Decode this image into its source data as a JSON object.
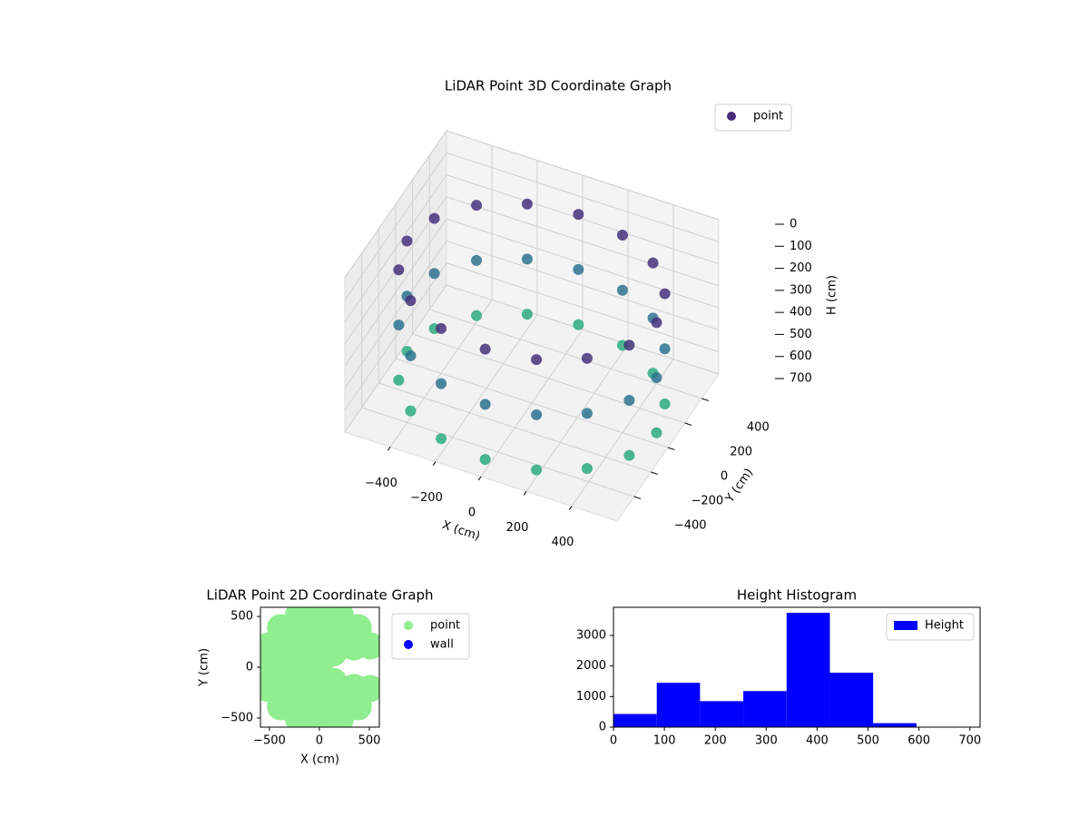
{
  "chart_data": [
    {
      "type": "scatter3d",
      "title": "LiDAR Point 3D Coordinate Graph",
      "xlabel": "X (cm)",
      "ylabel": "Y (cm)",
      "zlabel": "H (cm)",
      "xlim": [
        -600,
        600
      ],
      "ylim": [
        -600,
        600
      ],
      "zlim": [
        0,
        700
      ],
      "z_inverted": true,
      "xticks": [
        {
          "value": -400,
          "label": "−400"
        },
        {
          "value": -200,
          "label": "−200"
        },
        0,
        200,
        400
      ],
      "yticks": [
        {
          "value": -400,
          "label": "−400"
        },
        {
          "value": -200,
          "label": "−200"
        },
        0,
        200,
        400
      ],
      "zticks": [
        0,
        100,
        200,
        300,
        400,
        500,
        600,
        700
      ],
      "colormap": "viridis",
      "legend": "upper right",
      "series": [
        {
          "name": "point",
          "color": "#472d7b",
          "x": [
            550,
            508,
            389,
            210,
            0,
            -210,
            -389,
            -508,
            -550,
            -508,
            -389,
            -210,
            0,
            210,
            389,
            508,
            550,
            508,
            389,
            210,
            0,
            -210,
            -389,
            -508,
            -550,
            -508,
            -389,
            -210,
            0,
            210,
            389,
            508,
            550,
            508,
            389,
            210,
            0,
            -210,
            -389,
            -508,
            -550,
            -508,
            -389,
            -210,
            0,
            210,
            389,
            508
          ],
          "y": [
            0,
            210,
            389,
            508,
            550,
            508,
            389,
            210,
            0,
            -210,
            -389,
            -508,
            -550,
            -508,
            -389,
            -210,
            0,
            210,
            389,
            508,
            550,
            508,
            389,
            210,
            0,
            -210,
            -389,
            -508,
            -550,
            -508,
            -389,
            -210,
            0,
            210,
            389,
            508,
            550,
            508,
            389,
            210,
            0,
            -210,
            -389,
            -508,
            -550,
            -508,
            -389,
            -210
          ],
          "z": [
            150,
            150,
            150,
            150,
            150,
            150,
            150,
            150,
            150,
            150,
            150,
            150,
            150,
            150,
            150,
            150,
            400,
            400,
            400,
            400,
            400,
            400,
            400,
            400,
            400,
            400,
            400,
            400,
            400,
            400,
            400,
            400,
            650,
            650,
            650,
            650,
            650,
            650,
            650,
            650,
            650,
            650,
            650,
            650,
            650,
            650,
            650,
            650
          ]
        }
      ]
    },
    {
      "type": "scatter",
      "title": "LiDAR Point 2D Coordinate Graph",
      "xlabel": "X (cm)",
      "ylabel": "Y (cm)",
      "xlim": [
        -590,
        600
      ],
      "ylim": [
        -590,
        590
      ],
      "xticks": [
        {
          "value": -500,
          "label": "−500"
        },
        0,
        500
      ],
      "yticks": [
        {
          "value": -500,
          "label": "−500"
        },
        0,
        500
      ],
      "legend": "outside right",
      "series": [
        {
          "name": "point",
          "color": "#90ee90",
          "x": [
            0,
            141,
            0,
            -141,
            -200,
            -141,
            0,
            141,
            346,
            200,
            0,
            -200,
            -346,
            -400,
            -346,
            -200,
            0,
            200,
            346,
            508,
            389,
            210,
            0,
            -210,
            -389,
            -508,
            -550,
            -508,
            -389,
            -210,
            0,
            210,
            389,
            508
          ],
          "y": [
            0,
            141,
            200,
            141,
            0,
            -141,
            -200,
            -141,
            200,
            346,
            400,
            346,
            200,
            0,
            -200,
            -346,
            -400,
            -346,
            -200,
            210,
            389,
            508,
            550,
            508,
            389,
            210,
            0,
            -210,
            -389,
            -508,
            -550,
            -508,
            -389,
            -210
          ]
        },
        {
          "name": "wall",
          "color": "#0000ff",
          "x": [],
          "y": []
        }
      ]
    },
    {
      "type": "histogram",
      "title": "Height Histogram",
      "xlim": [
        0,
        720
      ],
      "ylim": [
        0,
        3920
      ],
      "xticks": [
        0,
        100,
        200,
        300,
        400,
        500,
        600,
        700
      ],
      "yticks": [
        0,
        1000,
        2000,
        3000
      ],
      "legend": "upper right",
      "bins": [
        0,
        85,
        170,
        255,
        340,
        425,
        510,
        595,
        680
      ],
      "series": [
        {
          "name": "Height",
          "color": "#0000ff",
          "values": [
            430,
            1450,
            850,
            1180,
            3740,
            1780,
            130,
            10
          ]
        }
      ]
    }
  ]
}
